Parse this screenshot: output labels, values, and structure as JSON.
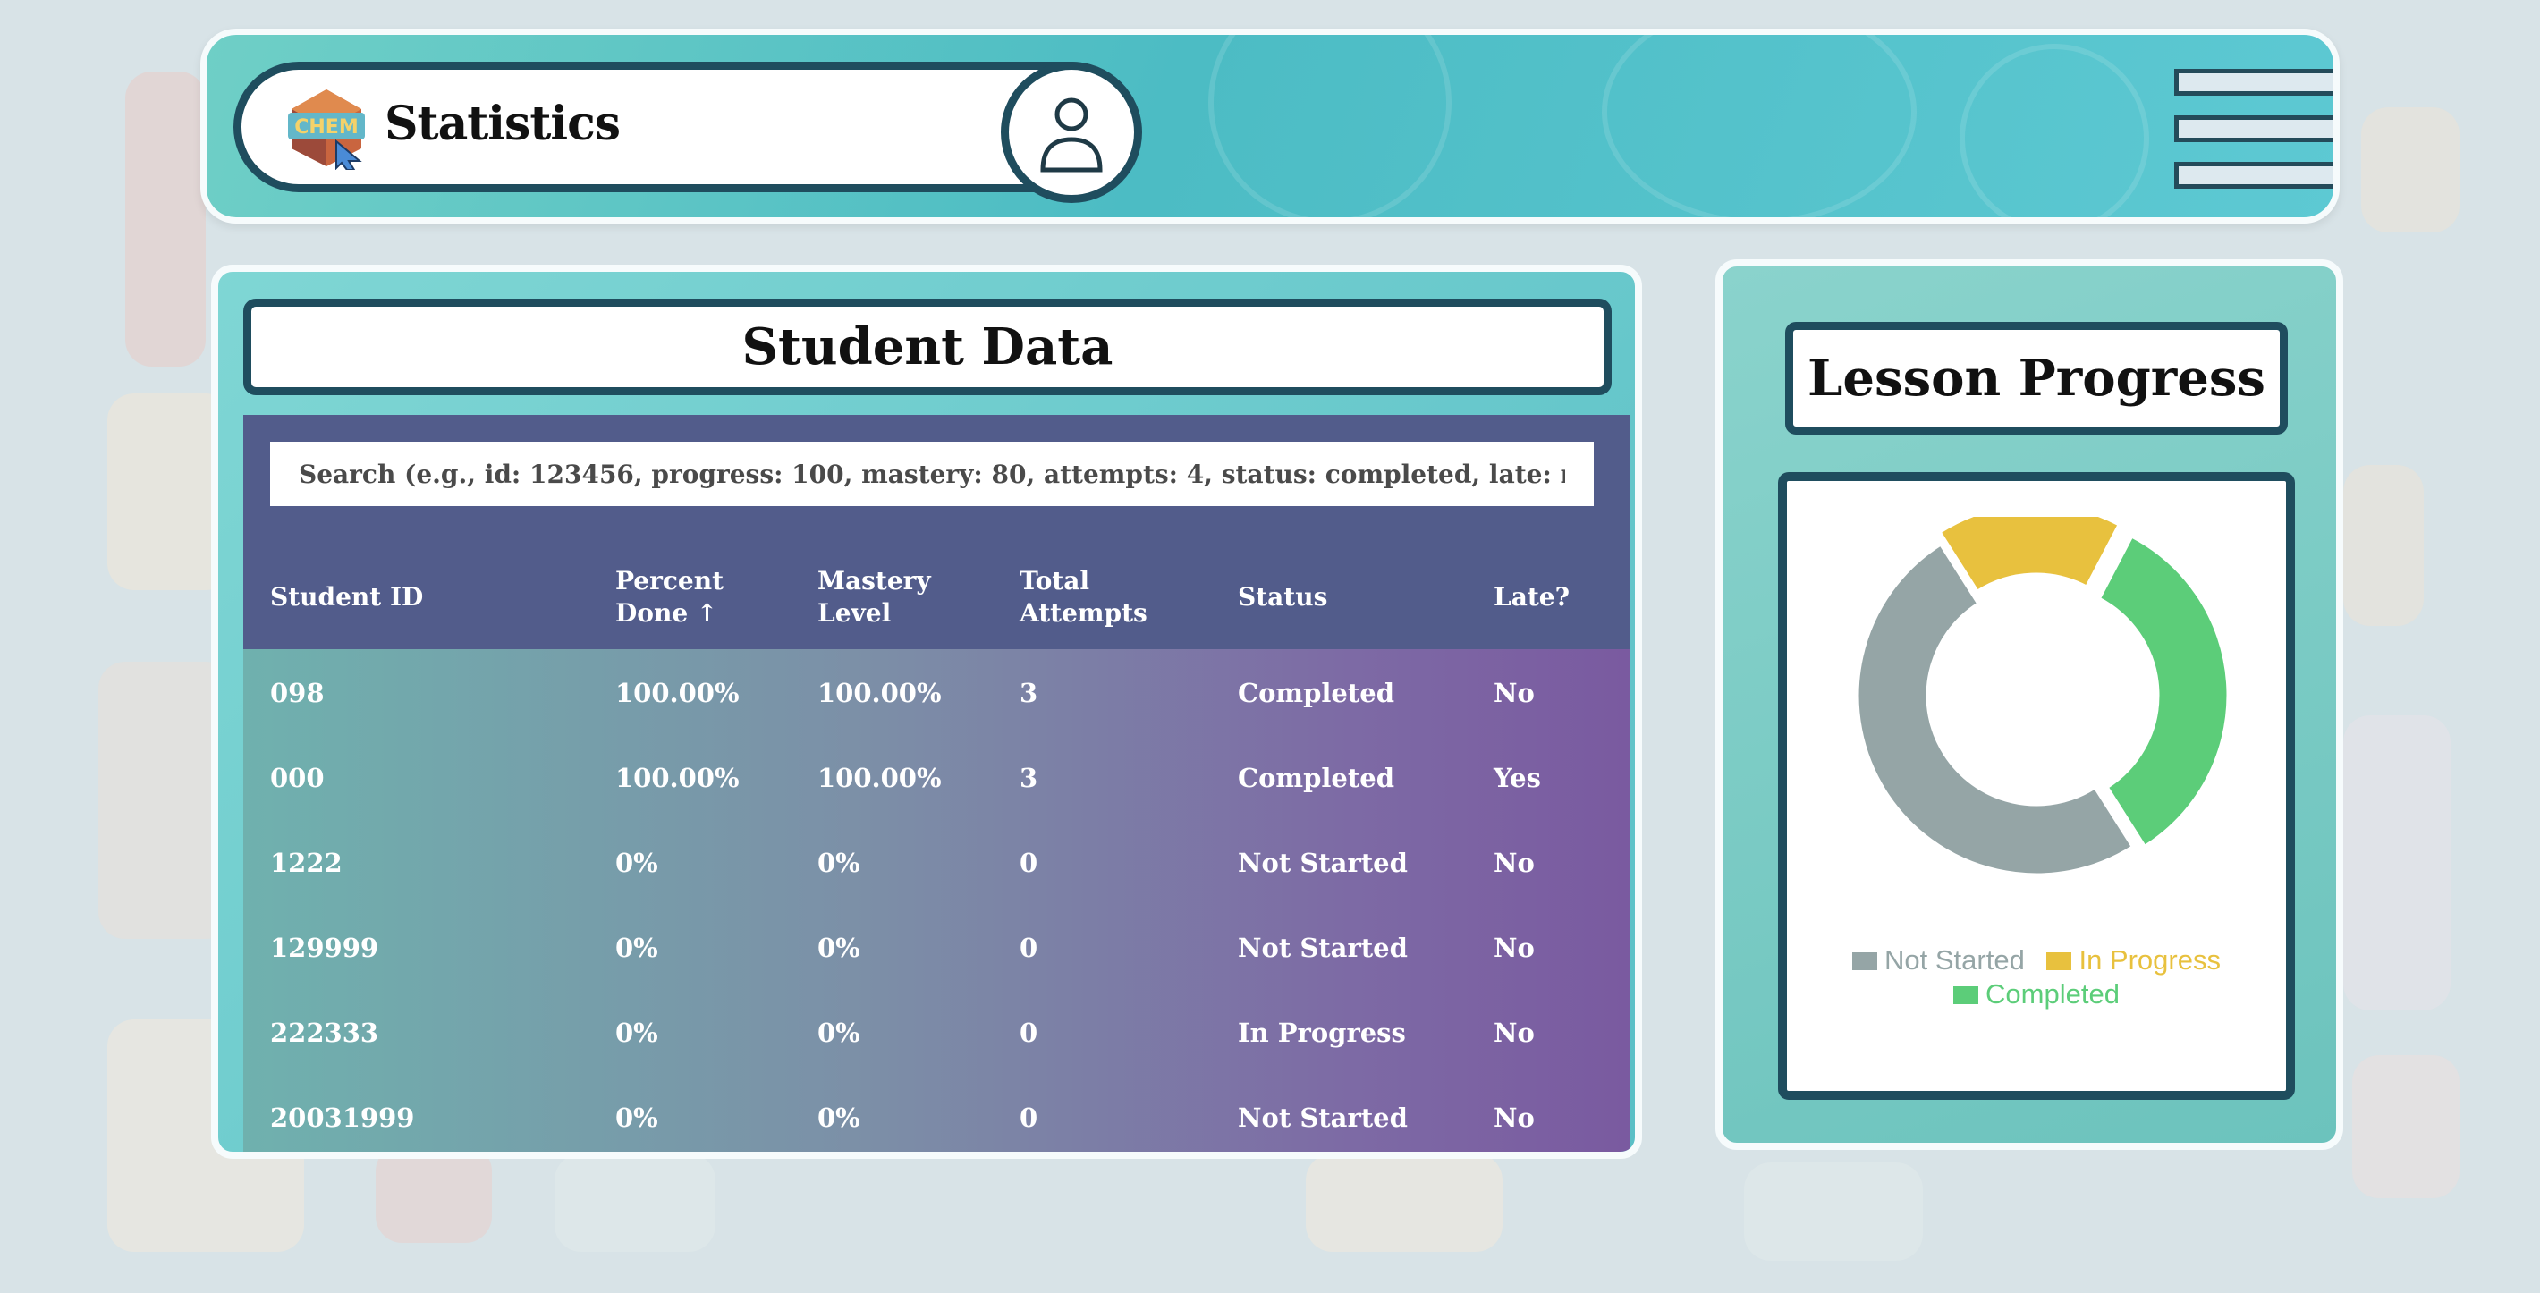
{
  "header": {
    "title": "Statistics",
    "logo_icon": "chem-logo-icon",
    "avatar_icon": "user-icon",
    "menu_icon": "hamburger-menu-icon"
  },
  "student_data": {
    "title": "Student Data",
    "search_placeholder": "Search (e.g., id: 123456, progress: 100, mastery: 80, attempts: 4, status: completed, late: no)",
    "columns": [
      {
        "label": "Student ID"
      },
      {
        "label": "Percent Done ↑"
      },
      {
        "label": "Mastery Level"
      },
      {
        "label": "Total Attempts"
      },
      {
        "label": "Status"
      },
      {
        "label": "Late?"
      }
    ],
    "rows": [
      {
        "id": "098",
        "percent": "100.00%",
        "mastery": "100.00%",
        "attempts": "3",
        "status": "Completed",
        "late": "No"
      },
      {
        "id": "000",
        "percent": "100.00%",
        "mastery": "100.00%",
        "attempts": "3",
        "status": "Completed",
        "late": "Yes"
      },
      {
        "id": "1222",
        "percent": "0%",
        "mastery": "0%",
        "attempts": "0",
        "status": "Not Started",
        "late": "No"
      },
      {
        "id": "129999",
        "percent": "0%",
        "mastery": "0%",
        "attempts": "0",
        "status": "Not Started",
        "late": "No"
      },
      {
        "id": "222333",
        "percent": "0%",
        "mastery": "0%",
        "attempts": "0",
        "status": "In Progress",
        "late": "No"
      },
      {
        "id": "20031999",
        "percent": "0%",
        "mastery": "0%",
        "attempts": "0",
        "status": "Not Started",
        "late": "No"
      }
    ]
  },
  "lesson_progress": {
    "title": "Lesson Progress"
  },
  "chart_data": {
    "type": "pie",
    "donut": true,
    "title": "",
    "categories": [
      "Not Started",
      "In Progress",
      "Completed"
    ],
    "values": [
      3,
      1,
      2
    ],
    "colors": [
      "#95a5a6",
      "#e8c13e",
      "#5ccd79"
    ],
    "legend_position": "bottom"
  },
  "colors": {
    "header_accent": "#4cbcc4",
    "border_dark": "#1f4d5e",
    "table_header": "#525c8b"
  }
}
